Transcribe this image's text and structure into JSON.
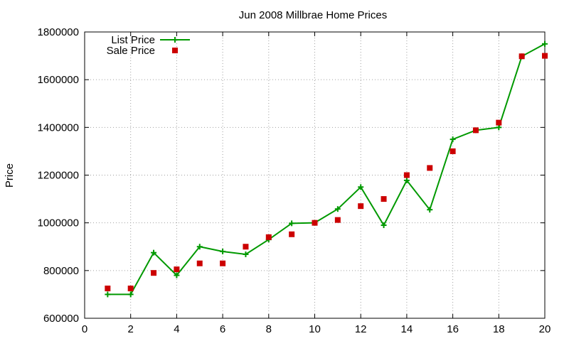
{
  "chart_data": {
    "type": "line",
    "title": "Jun 2008 Millbrae Home Prices",
    "xlabel": "",
    "ylabel": "Price",
    "xlim": [
      0,
      20
    ],
    "ylim": [
      600000,
      1800000
    ],
    "x_ticks": [
      0,
      2,
      4,
      6,
      8,
      10,
      12,
      14,
      16,
      18,
      20
    ],
    "y_ticks": [
      600000,
      800000,
      1000000,
      1200000,
      1400000,
      1600000,
      1800000
    ],
    "x_tick_labels": [
      "0",
      "2",
      "4",
      "6",
      "8",
      "10",
      "12",
      "14",
      "16",
      "18",
      "20"
    ],
    "y_tick_labels": [
      "600000",
      "800000",
      "1000000",
      "1200000",
      "1400000",
      "1600000",
      "1800000"
    ],
    "grid": true,
    "legend_position": "top-left",
    "x": [
      1,
      2,
      3,
      4,
      5,
      6,
      7,
      8,
      9,
      10,
      11,
      12,
      13,
      14,
      15,
      16,
      17,
      18,
      19,
      20
    ],
    "series": [
      {
        "name": "List Price",
        "style": "line+cross",
        "color": "#009900",
        "values": [
          700000,
          700000,
          875000,
          780000,
          900000,
          880000,
          868000,
          930000,
          998000,
          1000000,
          1058000,
          1150000,
          990000,
          1178000,
          1055000,
          1350000,
          1388000,
          1400000,
          1698000,
          1750000
        ]
      },
      {
        "name": "Sale Price",
        "style": "square",
        "color": "#cc0000",
        "values": [
          725000,
          725000,
          790000,
          805000,
          830000,
          830000,
          900000,
          940000,
          952000,
          1000000,
          1012000,
          1070000,
          1100000,
          1200000,
          1230000,
          1300000,
          1388000,
          1420000,
          1698000,
          1700000
        ]
      }
    ]
  }
}
